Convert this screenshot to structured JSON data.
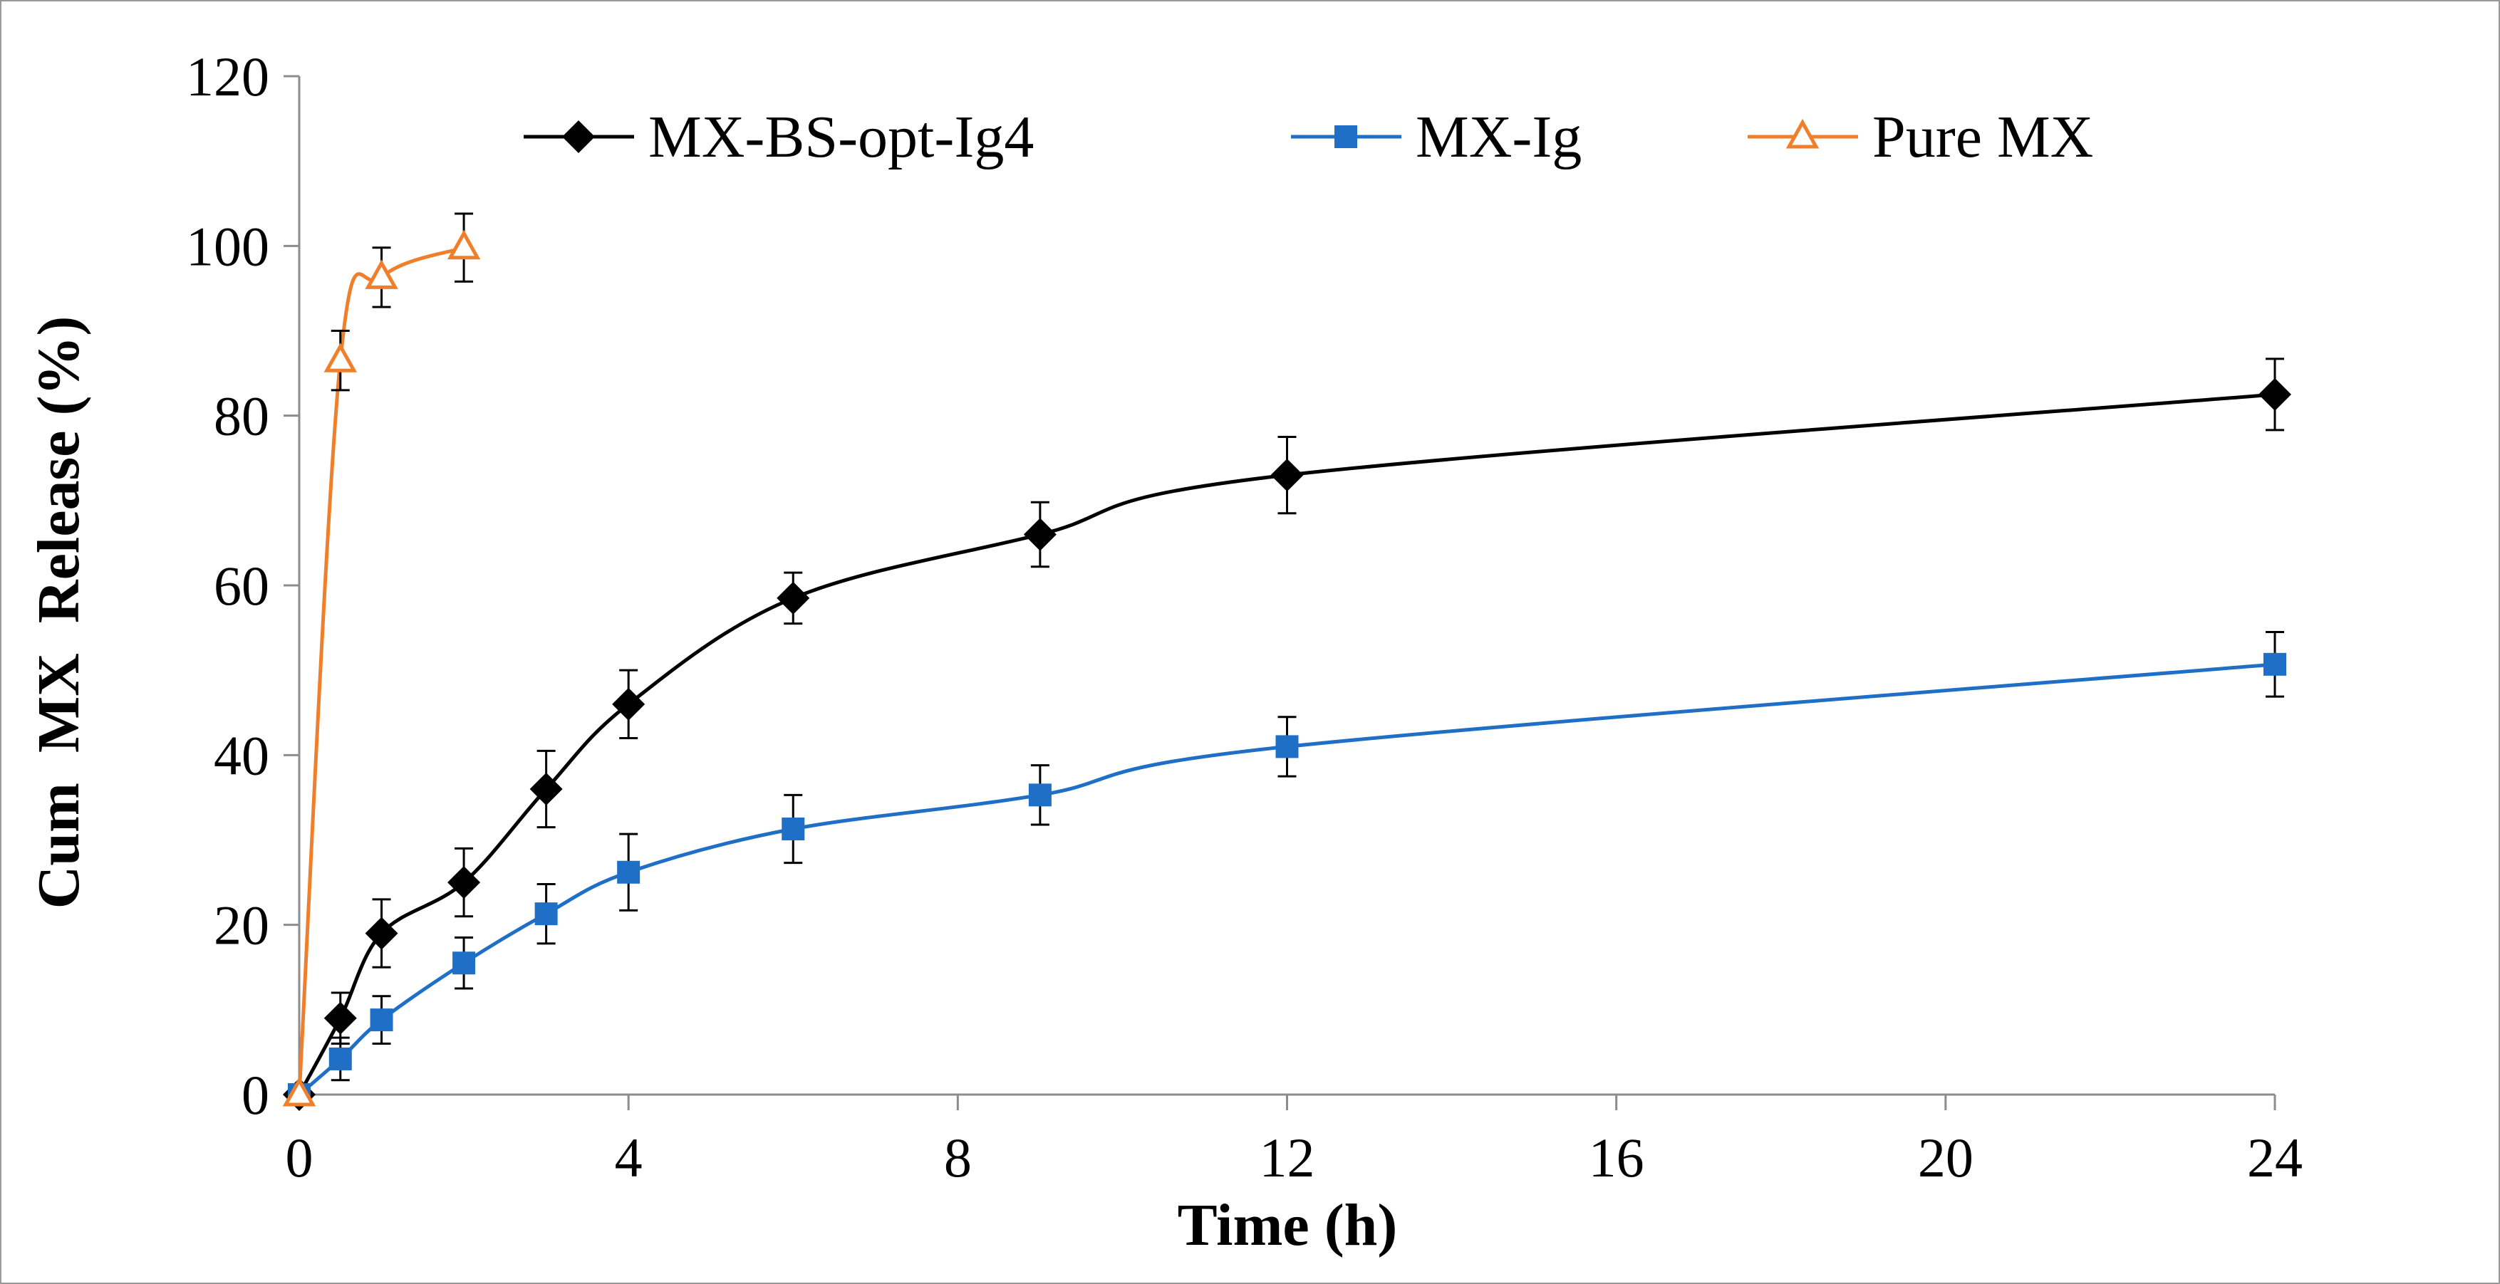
{
  "chart_data": {
    "type": "line",
    "title": "",
    "xlabel": "Time (h)",
    "ylabel": "Cum  MX  Release (%)",
    "xlim": [
      0,
      24
    ],
    "ylim": [
      0,
      120
    ],
    "x_ticks": [
      "0",
      "4",
      "8",
      "12",
      "16",
      "20",
      "24"
    ],
    "y_ticks": [
      "0",
      "20",
      "40",
      "60",
      "80",
      "100",
      "120"
    ],
    "grid": false,
    "legend_position": "top",
    "series": [
      {
        "name": "MX-BS-opt-Ig4",
        "color": "#000000",
        "marker": "diamond",
        "x": [
          0,
          0.5,
          1,
          2,
          3,
          4,
          6,
          9,
          12,
          24
        ],
        "y": [
          0,
          9,
          19,
          25,
          36,
          46,
          58.5,
          66,
          73,
          82.5
        ],
        "err": [
          0,
          3,
          4,
          4,
          4.5,
          4,
          3,
          3.8,
          4.5,
          4.2
        ]
      },
      {
        "name": "MX-Ig",
        "color": "#1f6fc6",
        "marker": "square",
        "x": [
          0,
          0.5,
          1,
          2,
          3,
          4,
          6,
          9,
          12,
          24
        ],
        "y": [
          0,
          4.2,
          8.8,
          15.5,
          21.3,
          26.2,
          31.3,
          35.3,
          41,
          50.7
        ],
        "err": [
          0,
          2.5,
          2.8,
          3,
          3.5,
          4.5,
          4,
          3.5,
          3.5,
          3.8
        ]
      },
      {
        "name": "Pure MX",
        "color": "#f07f2b",
        "marker": "triangle-open",
        "x": [
          0,
          0.5,
          1,
          2
        ],
        "y": [
          0,
          86.5,
          96.3,
          99.8
        ],
        "err": [
          0,
          3.5,
          3.5,
          4
        ]
      }
    ]
  }
}
